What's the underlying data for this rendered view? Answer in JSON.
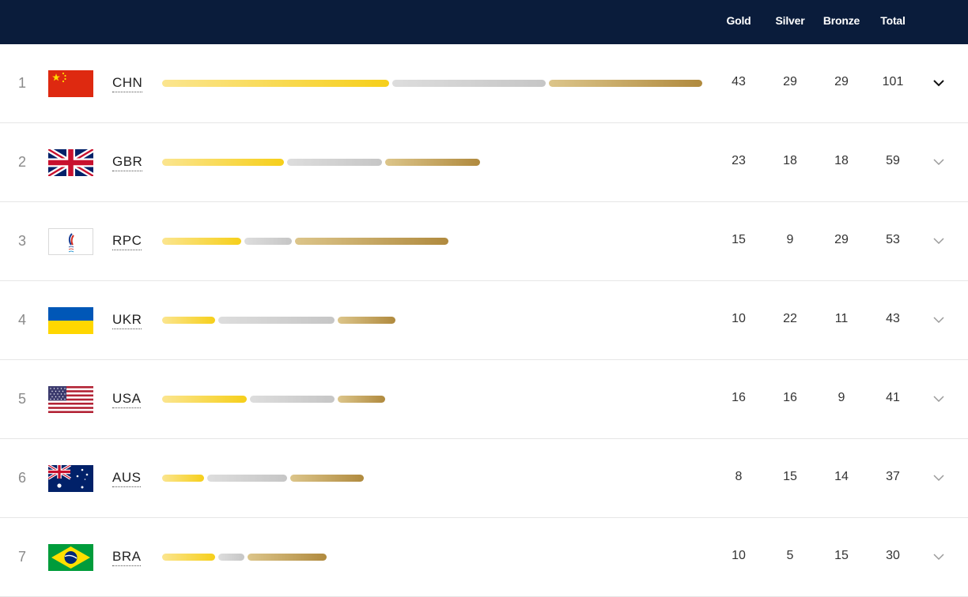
{
  "header": {
    "gold_label": "Gold",
    "silver_label": "Silver",
    "bronze_label": "Bronze",
    "total_label": "Total"
  },
  "rows": [
    {
      "rank": "1",
      "code": "CHN",
      "flag": "china-flag-icon",
      "gold": 43,
      "silver": 29,
      "bronze": 29,
      "total": 101,
      "expanded": true
    },
    {
      "rank": "2",
      "code": "GBR",
      "flag": "united-kingdom-flag-icon",
      "gold": 23,
      "silver": 18,
      "bronze": 18,
      "total": 59,
      "expanded": false
    },
    {
      "rank": "3",
      "code": "RPC",
      "flag": "rpc-flag-icon",
      "gold": 15,
      "silver": 9,
      "bronze": 29,
      "total": 53,
      "expanded": false
    },
    {
      "rank": "4",
      "code": "UKR",
      "flag": "ukraine-flag-icon",
      "gold": 10,
      "silver": 22,
      "bronze": 11,
      "total": 43,
      "expanded": false
    },
    {
      "rank": "5",
      "code": "USA",
      "flag": "usa-flag-icon",
      "gold": 16,
      "silver": 16,
      "bronze": 9,
      "total": 41,
      "expanded": false
    },
    {
      "rank": "6",
      "code": "AUS",
      "flag": "australia-flag-icon",
      "gold": 8,
      "silver": 15,
      "bronze": 14,
      "total": 37,
      "expanded": false
    },
    {
      "rank": "7",
      "code": "BRA",
      "flag": "brazil-flag-icon",
      "gold": 10,
      "silver": 5,
      "bronze": 15,
      "total": 30,
      "expanded": false
    }
  ],
  "colors": {
    "header_bg": "#0a1c3b",
    "gold": "#f6cf1a",
    "silver": "#c6c6c6",
    "bronze": "#b08a3e"
  }
}
